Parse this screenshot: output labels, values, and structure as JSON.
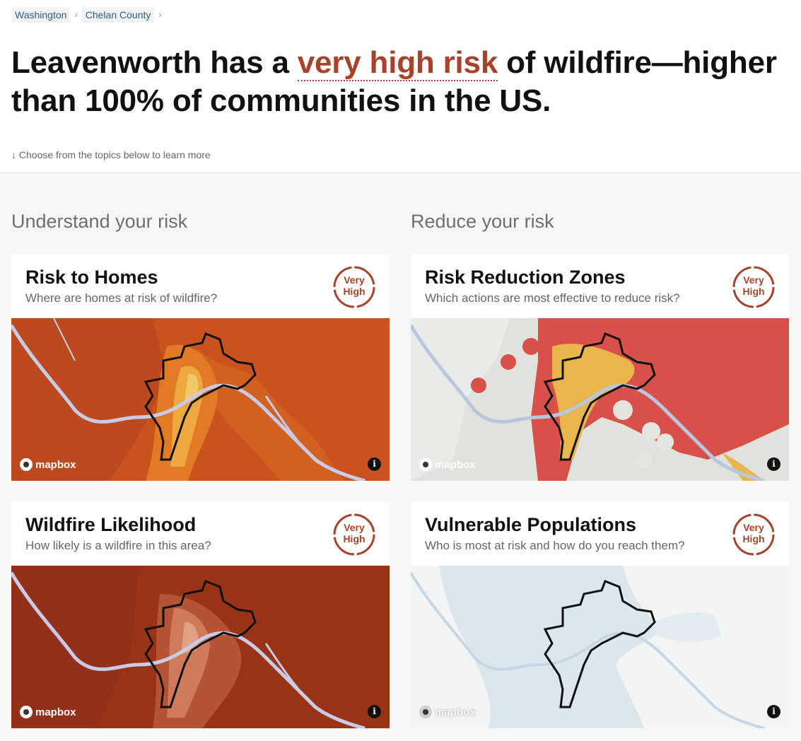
{
  "breadcrumbs": [
    {
      "label": "Washington"
    },
    {
      "label": "Chelan County"
    }
  ],
  "headline": {
    "prefix": "Leavenworth has a ",
    "risk_phrase": "very high risk",
    "suffix": " of wildfire—higher than 100% of communities in the US."
  },
  "hint": "↓ Choose from the topics below to learn more",
  "sections": {
    "understand": "Understand your risk",
    "reduce": "Reduce your risk"
  },
  "cards": [
    {
      "title": "Risk to Homes",
      "subtitle": "Where are homes at risk of wildfire?",
      "badge_line1": "Very",
      "badge_line2": "High"
    },
    {
      "title": "Risk Reduction Zones",
      "subtitle": "Which actions are most effective to reduce risk?",
      "badge_line1": "Very",
      "badge_line2": "High"
    },
    {
      "title": "Wildfire Likelihood",
      "subtitle": "How likely is a wildfire in this area?",
      "badge_line1": "Very",
      "badge_line2": "High"
    },
    {
      "title": "Vulnerable Populations",
      "subtitle": "Who is most at risk and how do you reach them?",
      "badge_line1": "Very",
      "badge_line2": "High"
    }
  ],
  "map_attribution": "mapbox",
  "info_glyph": "i",
  "colors": {
    "risk_accent": "#a7432b",
    "breadcrumb_link": "#2f5d8a"
  }
}
